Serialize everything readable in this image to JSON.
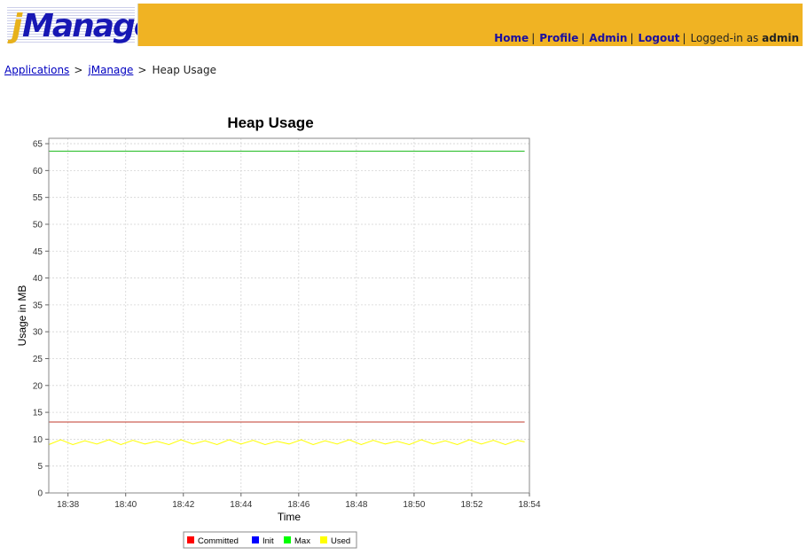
{
  "header": {
    "logo_j": "j",
    "logo_rest": "Manage",
    "nav": [
      {
        "label": "Home"
      },
      {
        "label": "Profile"
      },
      {
        "label": "Admin"
      },
      {
        "label": "Logout"
      }
    ],
    "logged_in_prefix": "Logged-in as",
    "user": "admin",
    "bg_color": "#f0b323"
  },
  "breadcrumb": {
    "items": [
      "Applications",
      "jManage"
    ],
    "current": "Heap Usage",
    "separator": ">"
  },
  "chart_data": {
    "type": "line",
    "title": "Heap Usage",
    "xlabel": "Time",
    "ylabel": "Usage in MB",
    "ylim": [
      0,
      66
    ],
    "yticks": [
      0,
      5,
      10,
      15,
      20,
      25,
      30,
      35,
      40,
      45,
      50,
      55,
      60,
      65
    ],
    "xlim": [
      "18:37:20",
      "18:54:00"
    ],
    "xticks": [
      "18:38",
      "18:40",
      "18:42",
      "18:44",
      "18:46",
      "18:48",
      "18:50",
      "18:52",
      "18:54"
    ],
    "grid": true,
    "legend_placement": "bottom",
    "series": [
      {
        "name": "Committed",
        "color": "#ff0000",
        "line_color": "#c0392b",
        "x": [
          "18:37:20",
          "18:53:50"
        ],
        "y": [
          13.2,
          13.2
        ]
      },
      {
        "name": "Init",
        "color": "#0000ff",
        "line_color": "#0000ff",
        "x": [
          "18:37:20",
          "18:53:50"
        ],
        "y": [
          0,
          0
        ]
      },
      {
        "name": "Max",
        "color": "#00ff00",
        "line_color": "#22bb22",
        "x": [
          "18:37:20",
          "18:53:50"
        ],
        "y": [
          63.6,
          63.6
        ]
      },
      {
        "name": "Used",
        "color": "#ffff00",
        "line_color": "#ffff00",
        "x": [
          "18:37:20",
          "18:37:45",
          "18:38:10",
          "18:38:35",
          "18:39:00",
          "18:39:25",
          "18:39:50",
          "18:40:15",
          "18:40:40",
          "18:41:05",
          "18:41:30",
          "18:41:55",
          "18:42:20",
          "18:42:45",
          "18:43:10",
          "18:43:35",
          "18:44:00",
          "18:44:25",
          "18:44:50",
          "18:45:15",
          "18:45:40",
          "18:46:05",
          "18:46:30",
          "18:46:55",
          "18:47:20",
          "18:47:45",
          "18:48:10",
          "18:48:35",
          "18:49:00",
          "18:49:25",
          "18:49:50",
          "18:50:15",
          "18:50:40",
          "18:51:05",
          "18:51:30",
          "18:51:55",
          "18:52:20",
          "18:52:45",
          "18:53:10",
          "18:53:35",
          "18:53:50"
        ],
        "y": [
          9.0,
          9.9,
          9.0,
          9.7,
          9.1,
          9.9,
          9.0,
          9.8,
          9.1,
          9.6,
          9.0,
          9.9,
          9.1,
          9.7,
          9.0,
          9.9,
          9.1,
          9.8,
          9.0,
          9.6,
          9.1,
          9.9,
          9.0,
          9.7,
          9.1,
          9.9,
          9.0,
          9.8,
          9.1,
          9.6,
          9.0,
          9.9,
          9.1,
          9.7,
          9.0,
          9.9,
          9.1,
          9.8,
          9.0,
          9.8,
          9.5
        ]
      }
    ]
  }
}
